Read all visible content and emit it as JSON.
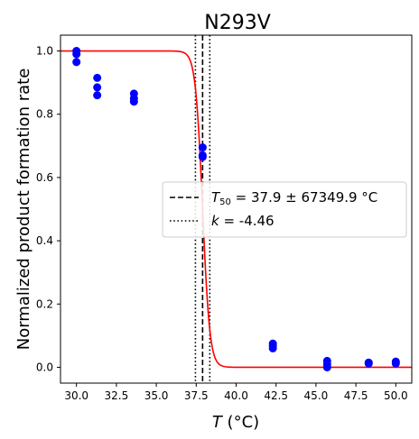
{
  "chart_data": {
    "type": "scatter",
    "title": "N293V",
    "xlabel": "T (°C)",
    "xlabel_parts": {
      "var": "T",
      "unit": " (°C)"
    },
    "ylabel": "Normalized product formation rate",
    "xlim": [
      29.0,
      51.0
    ],
    "ylim": [
      -0.05,
      1.05
    ],
    "x_ticks": [
      30.0,
      32.5,
      35.0,
      37.5,
      40.0,
      42.5,
      45.0,
      47.5,
      50.0
    ],
    "x_tick_labels": [
      "30.0",
      "32.5",
      "35.0",
      "37.5",
      "40.0",
      "42.5",
      "45.0",
      "47.5",
      "50.0"
    ],
    "y_ticks": [
      0.0,
      0.2,
      0.4,
      0.6,
      0.8,
      1.0
    ],
    "y_tick_labels": [
      "0.0",
      "0.2",
      "0.4",
      "0.6",
      "0.8",
      "1.0"
    ],
    "points": {
      "color": "#0000ff",
      "x": [
        30.0,
        30.0,
        30.0,
        31.3,
        31.3,
        31.3,
        33.6,
        33.6,
        33.6,
        37.9,
        37.9,
        37.9,
        42.3,
        42.3,
        42.3,
        45.7,
        45.7,
        45.7,
        48.3,
        48.3,
        50.0,
        50.0
      ],
      "y": [
        1.0,
        0.99,
        0.965,
        0.915,
        0.885,
        0.86,
        0.865,
        0.85,
        0.84,
        0.695,
        0.67,
        0.665,
        0.075,
        0.068,
        0.06,
        0.02,
        0.01,
        0.0,
        0.015,
        0.012,
        0.018,
        0.012
      ]
    },
    "fit_curve": {
      "color": "#ff0000",
      "T50": 37.9,
      "k": -4.46,
      "x_range": [
        29.0,
        51.0
      ]
    },
    "vlines": [
      {
        "x": 37.9,
        "style": "dashed",
        "color": "#000000"
      },
      {
        "x": 37.45,
        "style": "dotted",
        "color": "#000000"
      },
      {
        "x": 38.35,
        "style": "dotted",
        "color": "#000000"
      }
    ],
    "legend": {
      "placement": "center-right",
      "entries": [
        {
          "style": "dashed",
          "sym": "T",
          "sub": "50",
          "text": " = 37.9 ± 67349.9 °C"
        },
        {
          "style": "dotted",
          "sym": "k",
          "sub": "",
          "text": " = -4.46"
        }
      ]
    },
    "grid": false
  }
}
